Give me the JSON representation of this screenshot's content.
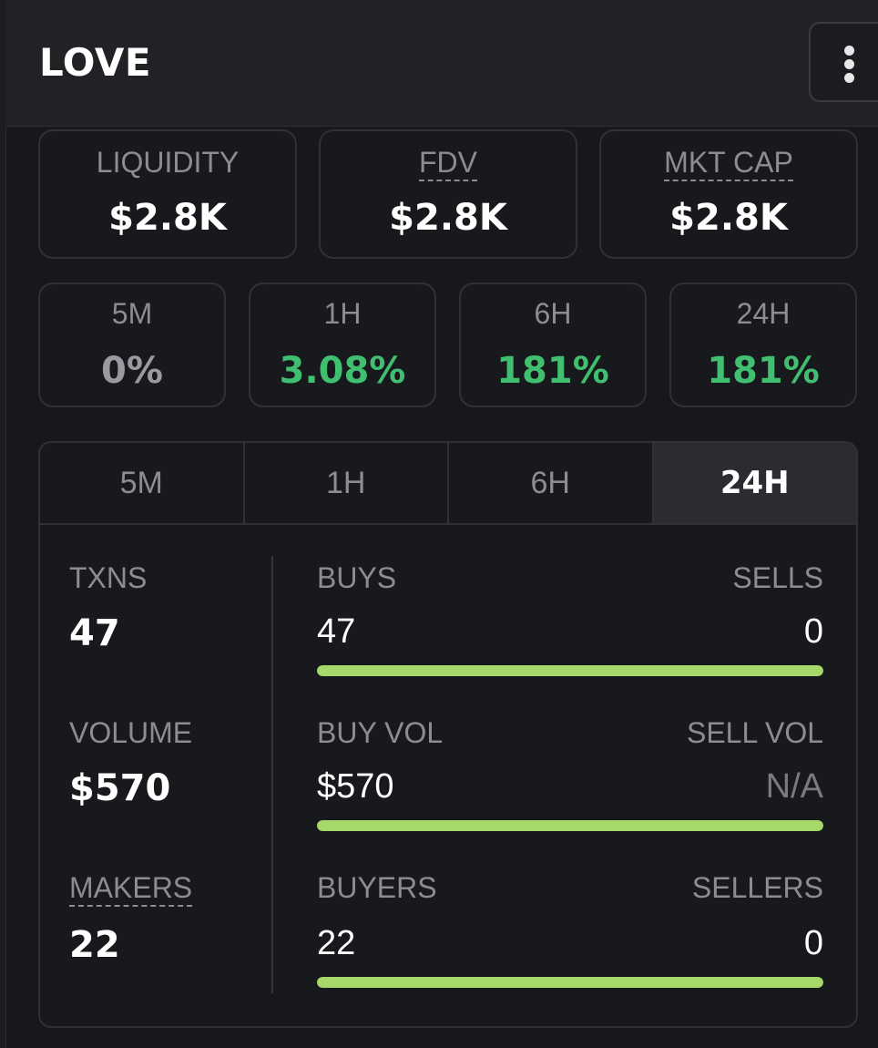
{
  "header": {
    "title": "LOVE"
  },
  "stats": {
    "liquidity": {
      "label": "LIQUIDITY",
      "value": "$2.8K"
    },
    "fdv": {
      "label": "FDV",
      "value": "$2.8K"
    },
    "mkt_cap": {
      "label": "MKT CAP",
      "value": "$2.8K"
    }
  },
  "price_change": [
    {
      "label": "5M",
      "value": "0%"
    },
    {
      "label": "1H",
      "value": "3.08%"
    },
    {
      "label": "6H",
      "value": "181%"
    },
    {
      "label": "24H",
      "value": "181%"
    }
  ],
  "tabs": [
    {
      "label": "5M"
    },
    {
      "label": "1H"
    },
    {
      "label": "6H"
    },
    {
      "label": "24H"
    }
  ],
  "active_tab": "24H",
  "activity": {
    "txns": {
      "label": "TXNS",
      "value": "47"
    },
    "volume": {
      "label": "VOLUME",
      "value": "$570"
    },
    "makers": {
      "label": "MAKERS",
      "value": "22"
    },
    "buys": {
      "label": "BUYS",
      "value": "47"
    },
    "sells": {
      "label": "SELLS",
      "value": "0"
    },
    "buy_vol": {
      "label": "BUY VOL",
      "value": "$570"
    },
    "sell_vol": {
      "label": "SELL VOL",
      "value": "N/A"
    },
    "buyers": {
      "label": "BUYERS",
      "value": "22"
    },
    "sellers": {
      "label": "SELLERS",
      "value": "0"
    },
    "buy_ratio": {
      "txns": 1.0,
      "volume": 1.0,
      "makers": 1.0
    }
  },
  "colors": {
    "positive": "#3fbf6f",
    "neutral": "#9a9aa2",
    "bar_fill": "#a6d96a"
  },
  "icons": {
    "menu": "vertical-ellipsis-icon"
  }
}
